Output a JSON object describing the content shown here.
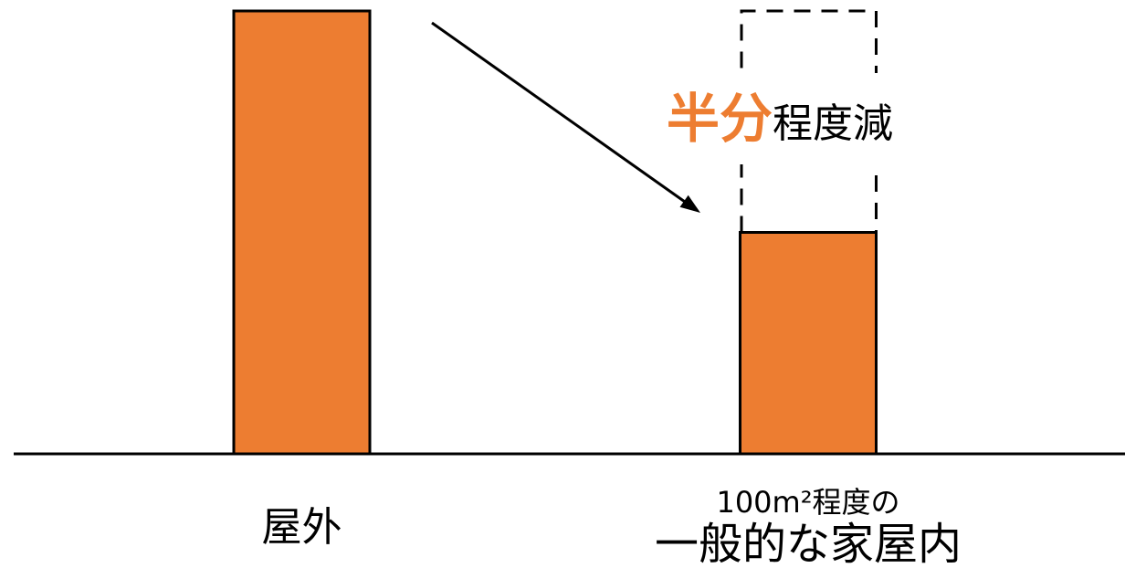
{
  "chart_data": {
    "type": "bar",
    "categories": [
      [
        "屋外"
      ],
      [
        "100m²程度の",
        "一般的な家屋内"
      ]
    ],
    "values": [
      1.0,
      0.5
    ],
    "ylim": [
      0,
      1
    ],
    "grid": false,
    "bar_color": "#ED7D31",
    "reference_outline": {
      "category_index": 1,
      "value": 1.0,
      "dashed": true
    },
    "annotation": {
      "emphasis": "半分",
      "emphasis_color": "#ED7D31",
      "text": "程度減"
    }
  }
}
